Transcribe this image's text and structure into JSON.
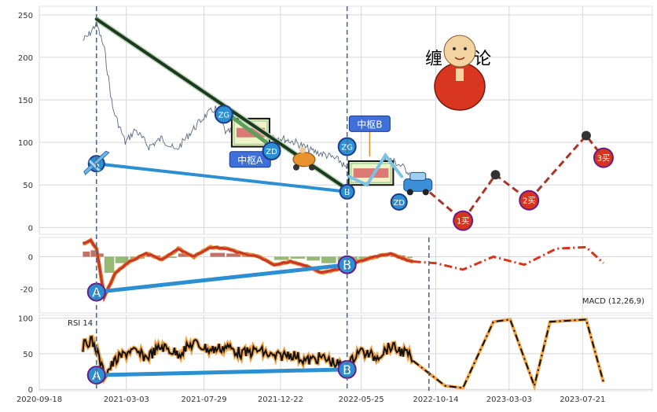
{
  "chart_data": [
    {
      "type": "line",
      "panel": "price",
      "ylim": [
        -8,
        260
      ],
      "yticks": [
        0,
        50,
        100,
        150,
        200,
        250
      ],
      "grid": true,
      "series": [
        {
          "x": [
            "2020-12-10",
            "2020-12-20",
            "2021-01-05",
            "2021-01-20",
            "2021-02-05",
            "2021-03-01",
            "2021-03-20",
            "2021-04-15",
            "2021-05-10",
            "2021-06-05",
            "2021-07-01",
            "2021-07-29",
            "2021-08-20",
            "2021-09-10",
            "2021-10-05",
            "2021-11-01",
            "2021-11-25",
            "2021-12-22",
            "2022-01-20",
            "2022-02-20",
            "2022-03-20",
            "2022-04-15",
            "2022-05-01",
            "2022-05-20",
            "2022-06-10",
            "2022-06-30",
            "2022-07-20",
            "2022-08-10",
            "2022-08-25"
          ],
          "values": [
            220,
            225,
            240,
            210,
            140,
            100,
            115,
            95,
            105,
            90,
            110,
            130,
            140,
            110,
            120,
            115,
            110,
            105,
            100,
            90,
            85,
            78,
            65,
            62,
            70,
            75,
            80,
            72,
            65
          ]
        }
      ],
      "trend_lines": [
        {
          "points": [
            [
              "2021-01-05",
              245
            ],
            [
              "2022-04-28",
              45
            ]
          ],
          "color": "#1e3a1e"
        },
        {
          "points": [
            [
              "2021-01-05",
              75
            ],
            [
              "2022-04-28",
              42
            ]
          ],
          "color": "#2b8fd1"
        },
        {
          "points": [
            [
              "2021-09-20",
              130
            ],
            [
              "2021-11-25",
              100
            ]
          ],
          "color": "#5da05d"
        },
        {
          "points": [
            [
              "2022-05-01",
              60
            ],
            [
              "2022-06-05",
              50
            ],
            [
              "2022-07-10",
              85
            ],
            [
              "2022-08-10",
              60
            ]
          ],
          "color": "#7ec1e2"
        }
      ],
      "forecast": {
        "points": [
          [
            "2022-09-01",
            58
          ],
          [
            "2022-12-05",
            8
          ],
          [
            "2023-02-05",
            62
          ],
          [
            "2023-04-10",
            32
          ],
          [
            "2023-07-28",
            108
          ],
          [
            "2023-08-30",
            82
          ]
        ],
        "color": "#a8342a",
        "markers": [
          "2023-02-05",
          "2023-07-28"
        ]
      },
      "zones": [
        {
          "label": "中枢A",
          "x": [
            "2021-09-20",
            "2021-12-01"
          ],
          "y": [
            95,
            128
          ],
          "callout_x": "2021-10-25",
          "callout_y": 80
        },
        {
          "label": "中枢B",
          "x": [
            "2022-05-01",
            "2022-07-25"
          ],
          "y": [
            50,
            78
          ],
          "callout_x": "2022-06-10",
          "callout_y": 122
        }
      ],
      "markers": [
        {
          "label": "ZG",
          "x": "2021-09-05",
          "y": 133,
          "color": "#2b8fd1",
          "r": 11
        },
        {
          "label": "ZD",
          "x": "2021-12-05",
          "y": 90,
          "color": "#2b8fd1",
          "r": 11
        },
        {
          "label": "ZG",
          "x": "2022-04-28",
          "y": 95,
          "color": "#2b8fd1",
          "r": 11
        },
        {
          "label": "ZD",
          "x": "2022-08-05",
          "y": 30,
          "color": "#2b8fd1",
          "r": 10
        },
        {
          "label": "B",
          "x": "2022-04-28",
          "y": 42,
          "color": "#2b8fd1",
          "r": 9
        },
        {
          "label": "A",
          "x": "2021-01-05",
          "y": 75,
          "color": "#2b8fd1",
          "r": 10
        },
        {
          "label": "1买",
          "x": "2022-12-05",
          "y": 8,
          "color": "#d9341a",
          "r": 12
        },
        {
          "label": "2买",
          "x": "2023-04-10",
          "y": 32,
          "color": "#d9341a",
          "r": 12
        },
        {
          "label": "3买",
          "x": "2023-08-30",
          "y": 82,
          "color": "#d9341a",
          "r": 12
        }
      ],
      "annotations": [
        "缠",
        "论"
      ]
    },
    {
      "type": "line",
      "panel": "macd",
      "legend": "MACD (12,26,9)",
      "ylim": [
        -35,
        12
      ],
      "yticks": [
        -20,
        0
      ],
      "grid": true,
      "series": [
        {
          "x": [
            "2020-12-10",
            "2020-12-25",
            "2021-01-05",
            "2021-01-20",
            "2021-02-10",
            "2021-03-10",
            "2021-04-10",
            "2021-05-10",
            "2021-06-10",
            "2021-07-10",
            "2021-08-10",
            "2021-09-10",
            "2021-10-10",
            "2021-11-10",
            "2021-12-10",
            "2022-01-10",
            "2022-02-10",
            "2022-03-10",
            "2022-04-10",
            "2022-04-28",
            "2022-05-20",
            "2022-06-20",
            "2022-07-20",
            "2022-08-20",
            "2022-09-01"
          ],
          "values": [
            8,
            10,
            5,
            -25,
            -10,
            -3,
            2,
            -2,
            5,
            0,
            6,
            5,
            2,
            0,
            -5,
            -3,
            -6,
            -10,
            -8,
            -6,
            -3,
            0,
            2,
            -2,
            -3
          ]
        }
      ],
      "forecast": {
        "x": [
          "2022-09-01",
          "2022-10-14",
          "2022-12-05",
          "2023-02-01",
          "2023-04-01",
          "2023-06-01",
          "2023-07-28",
          "2023-08-30"
        ],
        "values": [
          -3,
          -4,
          -8,
          0,
          -5,
          5,
          6,
          -4
        ],
        "color": "#d9341a"
      },
      "divergence": {
        "from": [
          "2021-01-05",
          -22
        ],
        "to": [
          "2022-04-28",
          -5
        ],
        "labels": [
          "A",
          "B"
        ]
      }
    },
    {
      "type": "line",
      "panel": "rsi",
      "legend": "RSI 14",
      "ylim": [
        -2,
        104
      ],
      "yticks": [
        0,
        50,
        100
      ],
      "grid": true,
      "series": [
        {
          "x": [
            "2020-12-10",
            "2020-12-25",
            "2021-01-05",
            "2021-01-20",
            "2021-02-10",
            "2021-03-10",
            "2021-04-10",
            "2021-05-10",
            "2021-06-10",
            "2021-07-10",
            "2021-08-10",
            "2021-09-10",
            "2021-10-10",
            "2021-11-10",
            "2021-12-10",
            "2022-01-10",
            "2022-02-10",
            "2022-03-10",
            "2022-04-10",
            "2022-04-28",
            "2022-05-20",
            "2022-06-20",
            "2022-07-20",
            "2022-08-20",
            "2022-09-01"
          ],
          "values": [
            60,
            70,
            55,
            20,
            40,
            55,
            45,
            60,
            50,
            65,
            55,
            60,
            50,
            55,
            45,
            50,
            40,
            45,
            35,
            30,
            55,
            45,
            60,
            50,
            40
          ]
        }
      ],
      "forecast": {
        "x": [
          "2022-09-01",
          "2022-11-01",
          "2022-12-05",
          "2023-02-01",
          "2023-03-05",
          "2023-04-20",
          "2023-05-20",
          "2023-07-28",
          "2023-08-30"
        ],
        "values": [
          40,
          5,
          2,
          95,
          98,
          5,
          95,
          98,
          10
        ],
        "color": "#111111"
      },
      "divergence": {
        "from": [
          "2021-01-05",
          20
        ],
        "to": [
          "2022-04-28",
          28
        ],
        "labels": [
          "A",
          "B"
        ]
      }
    }
  ],
  "x_axis": {
    "ticks": [
      "2020-09-18",
      "2021-03-03",
      "2021-07-29",
      "2021-12-22",
      "2022-05-25",
      "2022-10-14",
      "2023-03-03",
      "2023-07-21"
    ],
    "range": [
      "2020-09-18",
      "2023-12-01"
    ],
    "vlines": [
      "2021-01-05",
      "2022-04-28",
      "2022-10-01"
    ]
  }
}
